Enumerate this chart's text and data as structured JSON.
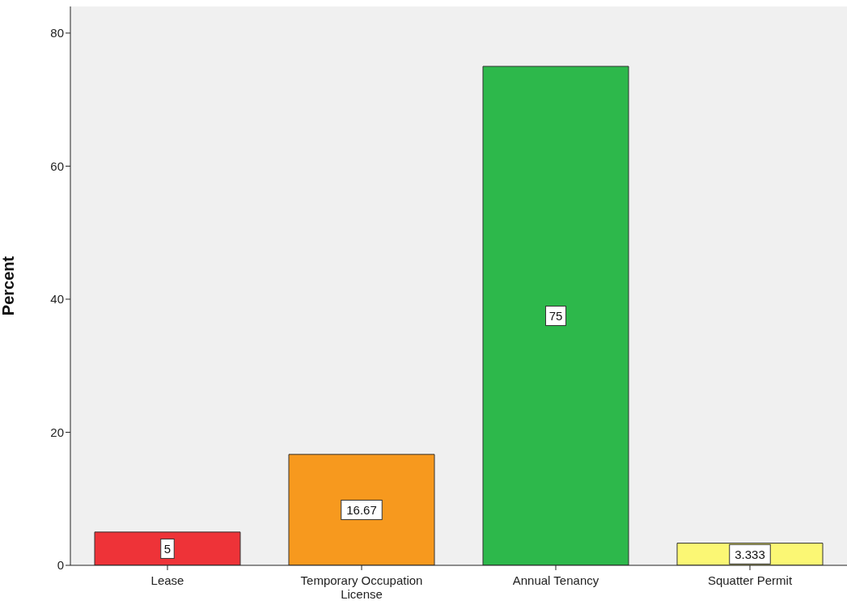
{
  "chart_data": {
    "type": "bar",
    "ylabel": "Percent",
    "categories": [
      "Lease",
      "Temporary Occupation License",
      "Annual Tenancy",
      "Squatter Permit"
    ],
    "values": [
      5,
      16.67,
      75,
      3.333
    ],
    "colors": [
      "#ee3338",
      "#f7991e",
      "#2db84b",
      "#fbf774"
    ],
    "ylim": [
      0,
      84
    ],
    "yticks": [
      0,
      20,
      40,
      60,
      80
    ],
    "grid": false,
    "data_labels": true
  }
}
